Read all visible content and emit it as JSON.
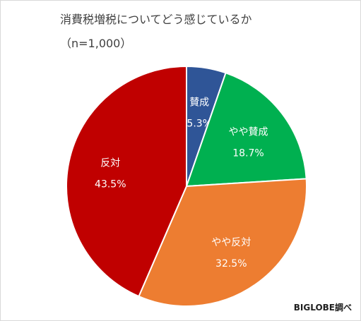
{
  "title": "消費税増税についてどう感じているか",
  "subtitle": "（n=1,000）",
  "source": "BIGLOBE調べ",
  "chart_data": {
    "type": "pie",
    "title": "消費税増税についてどう感じているか",
    "subtitle": "（n=1,000）",
    "start": "12 o'clock, clockwise",
    "slices": [
      {
        "label": "賛成",
        "value": 5.3,
        "value_label": "5.3%",
        "color": "#2f5597"
      },
      {
        "label": "やや賛成",
        "value": 18.7,
        "value_label": "18.7%",
        "color": "#00b050"
      },
      {
        "label": "やや反対",
        "value": 32.5,
        "value_label": "32.5%",
        "color": "#ed7d31"
      },
      {
        "label": "反対",
        "value": 43.5,
        "value_label": "43.5%",
        "color": "#c00000"
      }
    ],
    "label_color": "#ffffff",
    "slice_border_color": "#ffffff",
    "legend": "none"
  }
}
